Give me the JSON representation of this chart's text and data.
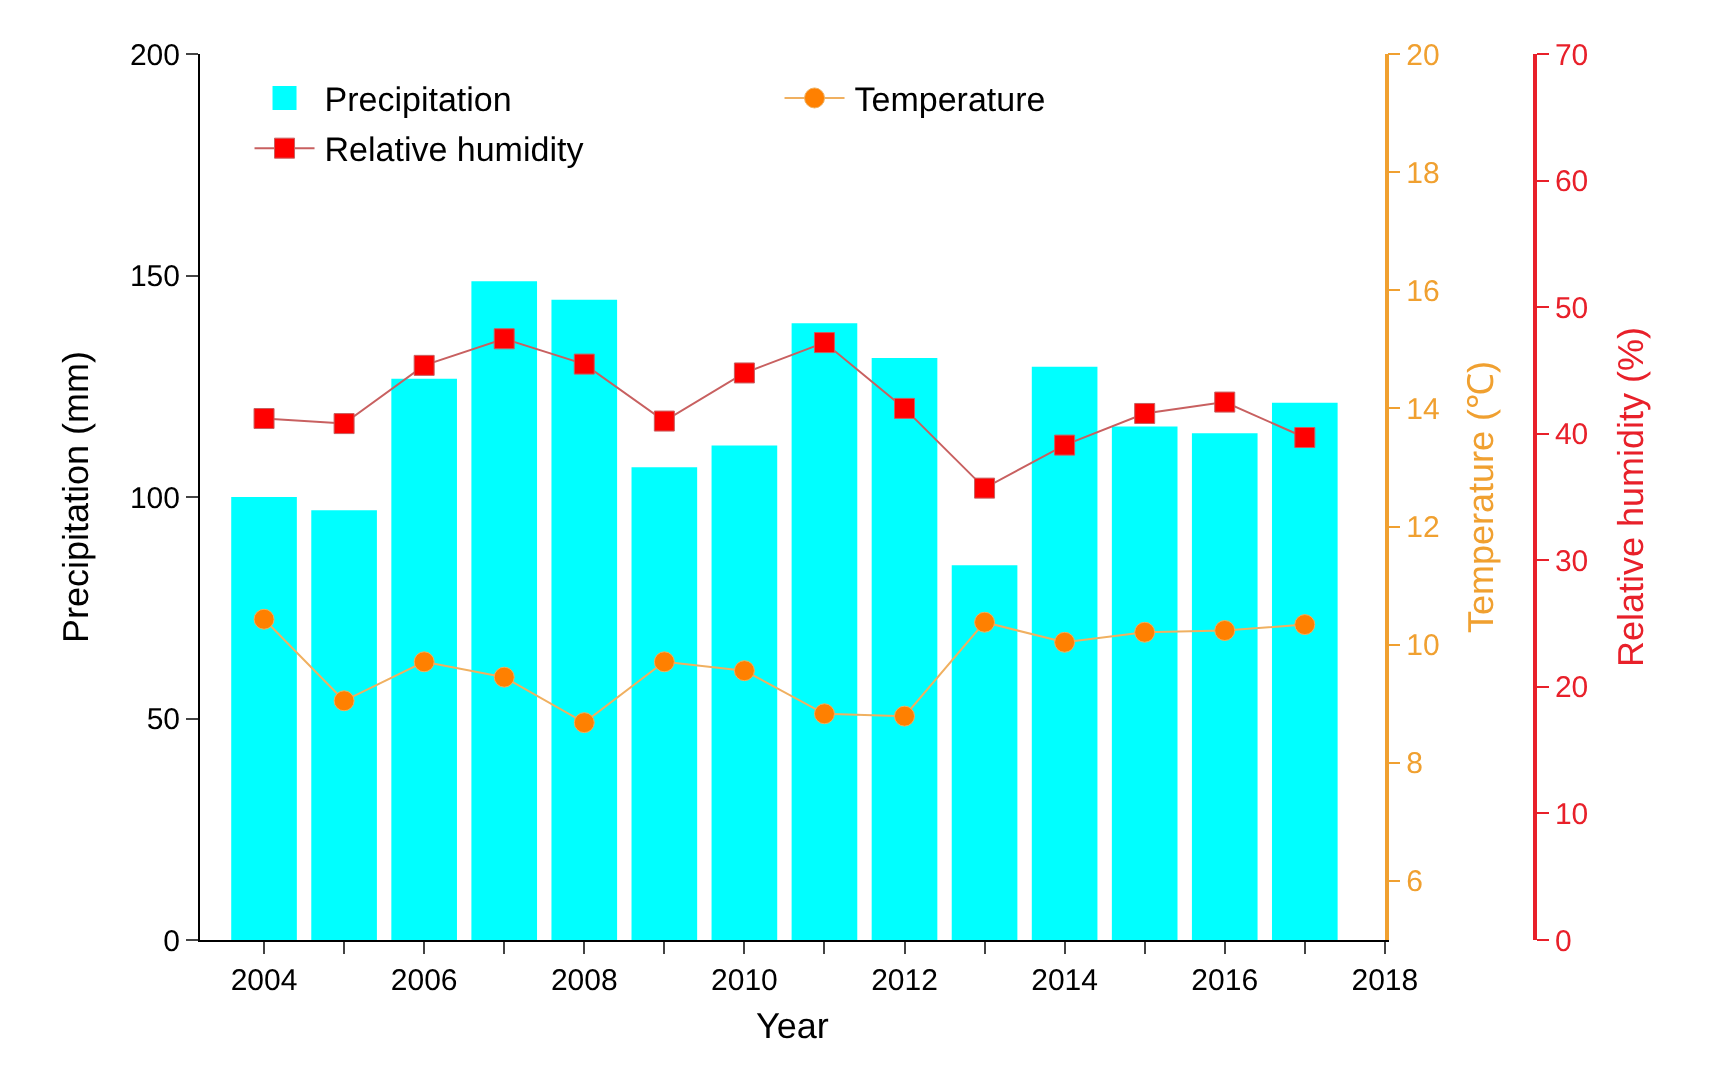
{
  "chart_data": {
    "type": "bar",
    "xlabel": "Year",
    "ylabel": "Precipitation (mm)",
    "y2label": "Temperature (℃)",
    "y3label": "Relative humidity (%)",
    "x": [
      2004,
      2005,
      2006,
      2007,
      2008,
      2009,
      2010,
      2011,
      2012,
      2013,
      2014,
      2015,
      2016,
      2017
    ],
    "xlim": [
      2003.2,
      2018
    ],
    "xticks": [
      2004,
      {
        "value": 2005,
        "label": null
      },
      2006,
      {
        "value": 2007,
        "label": null
      },
      2008,
      {
        "value": 2009,
        "label": null
      },
      2010,
      {
        "value": 2011,
        "label": null
      },
      2012,
      {
        "value": 2013,
        "label": null
      },
      2014,
      {
        "value": 2015,
        "label": null
      },
      2016,
      {
        "value": 2017,
        "label": null
      },
      2018
    ],
    "ylim": [
      0,
      200
    ],
    "yticks": [
      0,
      50,
      100,
      150,
      200
    ],
    "y2lim": [
      5,
      20
    ],
    "y2ticks": [
      6,
      8,
      10,
      12,
      14,
      16,
      18,
      20
    ],
    "y3lim": [
      0,
      70
    ],
    "y3ticks": [
      0,
      10,
      20,
      30,
      40,
      50,
      60,
      70
    ],
    "grid": false,
    "legend": "top",
    "series": [
      {
        "name": "Precipitation",
        "color": "#00ffff",
        "values": [
          100,
          97,
          126.7,
          148.7,
          144.5,
          106.7,
          111.6,
          139.2,
          131.4,
          84.6,
          129.4,
          115.9,
          114.4,
          121.3
        ]
      },
      {
        "name": "Temperature",
        "type": "line",
        "axis": "y2",
        "marker": "circle",
        "color": "#ff8000",
        "values": [
          10.43,
          9.05,
          9.71,
          9.45,
          8.68,
          9.71,
          9.56,
          8.83,
          8.79,
          10.38,
          10.04,
          10.21,
          10.24,
          10.34
        ]
      },
      {
        "name": "Relative humidity",
        "type": "line",
        "axis": "y3",
        "marker": "square",
        "color": "#ff0000",
        "values": [
          41.2,
          40.8,
          45.4,
          47.5,
          45.5,
          41.0,
          44.8,
          47.2,
          42.0,
          35.7,
          39.1,
          41.6,
          42.5,
          39.7
        ]
      }
    ]
  }
}
